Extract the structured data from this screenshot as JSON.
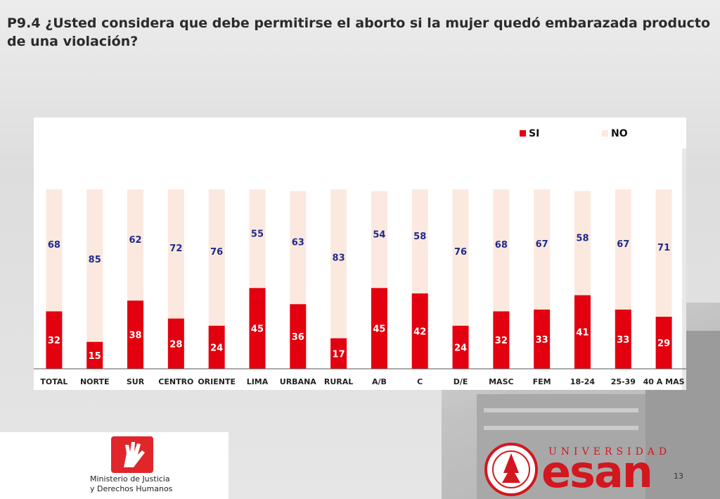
{
  "page": {
    "title": "P9.4 ¿Usted considera que debe permitirse el aborto si la mujer quedó embarazada producto de una violación?",
    "page_number": "13",
    "logos": {
      "ministry_line1": "Ministerio de Justicia",
      "ministry_line2": "y Derechos Humanos",
      "university_word": "UNIVERSIDAD",
      "university_name": "esan"
    }
  },
  "colors": {
    "si": "#e3000f",
    "no": "#fbe9df",
    "si_label": "#ffffff",
    "no_label": "#1f2a8a"
  },
  "chart_data": {
    "type": "bar",
    "stacked": true,
    "title": "",
    "xlabel": "",
    "ylabel": "",
    "ylim": [
      0,
      100
    ],
    "grid": false,
    "legend_position": "top-right",
    "categories": [
      "TOTAL",
      "NORTE",
      "SUR",
      "CENTRO",
      "ORIENTE",
      "LIMA",
      "URBANA",
      "RURAL",
      "A/B",
      "C",
      "D/E",
      "MASC",
      "FEM",
      "18-24",
      "25-39",
      "40 A MAS"
    ],
    "series": [
      {
        "name": "SI",
        "values": [
          32,
          15,
          38,
          28,
          24,
          45,
          36,
          17,
          45,
          42,
          24,
          32,
          33,
          41,
          33,
          29
        ]
      },
      {
        "name": "NO",
        "values": [
          68,
          85,
          62,
          72,
          76,
          55,
          63,
          83,
          54,
          58,
          76,
          68,
          67,
          58,
          67,
          71
        ]
      }
    ]
  }
}
